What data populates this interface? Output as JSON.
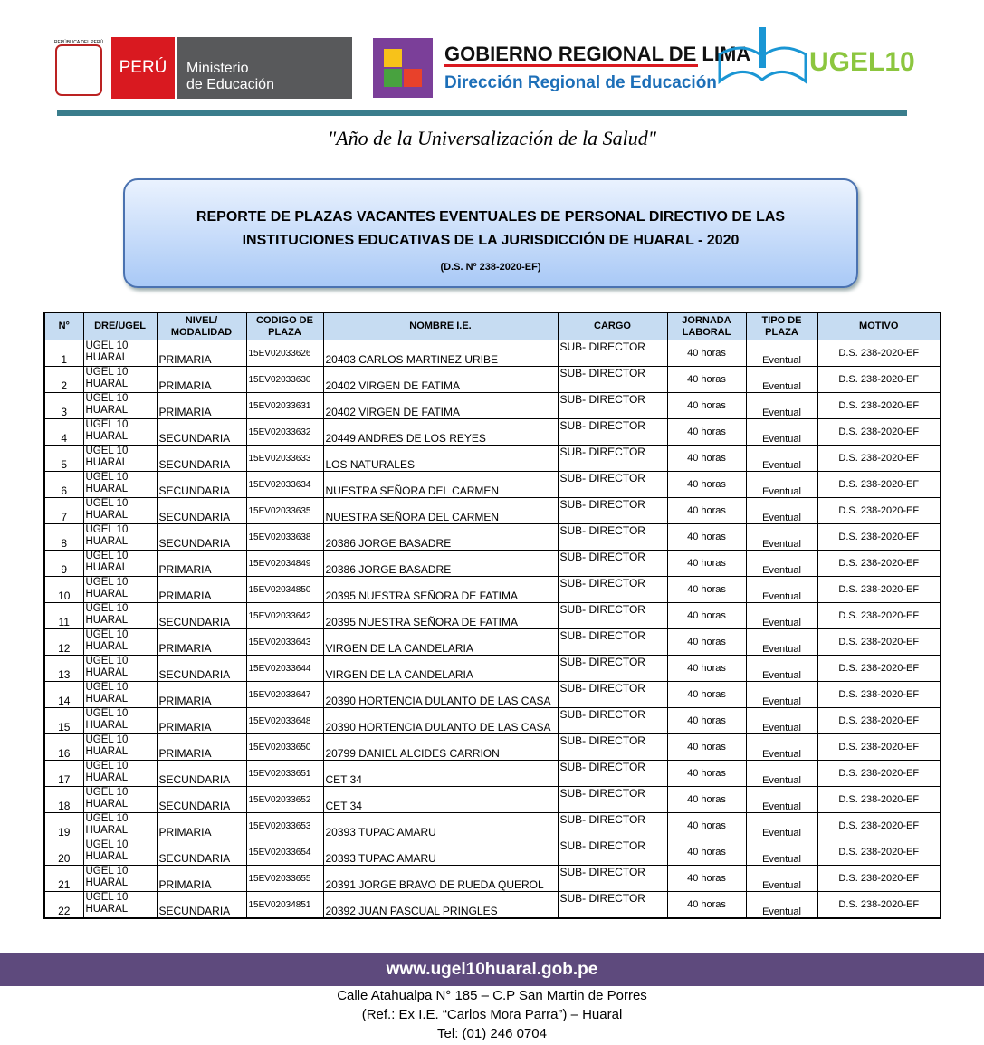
{
  "header": {
    "peru_shield": "REPÚBLICA DEL PERÚ",
    "peru": "PERÚ",
    "ministerio": [
      "Ministerio",
      "de Educación"
    ],
    "gobierno": "GOBIERNO REGIONAL DE LIMA",
    "direccion": "Dirección Regional de Educación",
    "ugel": "UGEL10"
  },
  "motto": "\"Año de la Universalización de la Salud\"",
  "title": {
    "lines": [
      "REPORTE DE PLAZAS VACANTES EVENTUALES DE PERSONAL DIRECTIVO DE LAS",
      "INSTITUCIONES EDUCATIVAS DE LA JURISDICCIÓN DE HUARAL - 2020"
    ],
    "decree": "(D.S. Nº 238-2020-EF)"
  },
  "table": {
    "columns": [
      "N°",
      "DRE/UGEL",
      "NIVEL/ MODALIDAD",
      "CODIGO DE PLAZA",
      "NOMBRE I.E.",
      "CARGO",
      "JORNADA LABORAL",
      "TIPO DE PLAZA",
      "MOTIVO"
    ],
    "rows": [
      [
        1,
        "UGEL 10",
        "HUARAL",
        "PRIMARIA",
        "15EV02033626",
        "20403 CARLOS MARTINEZ URIBE",
        "SUB- DIRECTOR",
        "40 horas",
        "Eventual",
        "D.S. 238-2020-EF"
      ],
      [
        2,
        "UGEL 10",
        "HUARAL",
        "PRIMARIA",
        "15EV02033630",
        "20402 VIRGEN DE FATIMA",
        "SUB- DIRECTOR",
        "40 horas",
        "Eventual",
        "D.S. 238-2020-EF"
      ],
      [
        3,
        "UGEL 10",
        "HUARAL",
        "PRIMARIA",
        "15EV02033631",
        "20402 VIRGEN DE FATIMA",
        "SUB- DIRECTOR",
        "40 horas",
        "Eventual",
        "D.S. 238-2020-EF"
      ],
      [
        4,
        "UGEL 10",
        "HUARAL",
        "SECUNDARIA",
        "15EV02033632",
        "20449 ANDRES DE LOS REYES",
        "SUB- DIRECTOR",
        "40 horas",
        "Eventual",
        "D.S. 238-2020-EF"
      ],
      [
        5,
        "UGEL 10",
        "HUARAL",
        "SECUNDARIA",
        "15EV02033633",
        "LOS NATURALES",
        "SUB- DIRECTOR",
        "40 horas",
        "Eventual",
        "D.S. 238-2020-EF"
      ],
      [
        6,
        "UGEL 10",
        "HUARAL",
        "SECUNDARIA",
        "15EV02033634",
        "NUESTRA SEÑORA DEL CARMEN",
        "SUB- DIRECTOR",
        "40 horas",
        "Eventual",
        "D.S. 238-2020-EF"
      ],
      [
        7,
        "UGEL 10",
        "HUARAL",
        "SECUNDARIA",
        "15EV02033635",
        "NUESTRA SEÑORA DEL CARMEN",
        "SUB- DIRECTOR",
        "40 horas",
        "Eventual",
        "D.S. 238-2020-EF"
      ],
      [
        8,
        "UGEL 10",
        "HUARAL",
        "SECUNDARIA",
        "15EV02033638",
        "20386 JORGE BASADRE",
        "SUB- DIRECTOR",
        "40 horas",
        "Eventual",
        "D.S. 238-2020-EF"
      ],
      [
        9,
        "UGEL 10",
        "HUARAL",
        "PRIMARIA",
        "15EV02034849",
        "20386 JORGE BASADRE",
        "SUB- DIRECTOR",
        "40 horas",
        "Eventual",
        "D.S. 238-2020-EF"
      ],
      [
        10,
        "UGEL 10",
        "HUARAL",
        "PRIMARIA",
        "15EV02034850",
        "20395 NUESTRA SEÑORA DE FATIMA",
        "SUB- DIRECTOR",
        "40 horas",
        "Eventual",
        "D.S. 238-2020-EF"
      ],
      [
        11,
        "UGEL 10",
        "HUARAL",
        "SECUNDARIA",
        "15EV02033642",
        "20395 NUESTRA SEÑORA DE FATIMA",
        "SUB- DIRECTOR",
        "40 horas",
        "Eventual",
        "D.S. 238-2020-EF"
      ],
      [
        12,
        "UGEL 10",
        "HUARAL",
        "PRIMARIA",
        "15EV02033643",
        "VIRGEN DE LA CANDELARIA",
        "SUB- DIRECTOR",
        "40 horas",
        "Eventual",
        "D.S. 238-2020-EF"
      ],
      [
        13,
        "UGEL 10",
        "HUARAL",
        "SECUNDARIA",
        "15EV02033644",
        "VIRGEN DE LA CANDELARIA",
        "SUB- DIRECTOR",
        "40 horas",
        "Eventual",
        "D.S. 238-2020-EF"
      ],
      [
        14,
        "UGEL 10",
        "HUARAL",
        "PRIMARIA",
        "15EV02033647",
        "20390 HORTENCIA DULANTO DE LAS CASA",
        "SUB- DIRECTOR",
        "40 horas",
        "Eventual",
        "D.S. 238-2020-EF"
      ],
      [
        15,
        "UGEL 10",
        "HUARAL",
        "PRIMARIA",
        "15EV02033648",
        "20390 HORTENCIA DULANTO DE LAS CASA",
        "SUB- DIRECTOR",
        "40 horas",
        "Eventual",
        "D.S. 238-2020-EF"
      ],
      [
        16,
        "UGEL 10",
        "HUARAL",
        "PRIMARIA",
        "15EV02033650",
        "20799 DANIEL ALCIDES CARRION",
        "SUB- DIRECTOR",
        "40 horas",
        "Eventual",
        "D.S. 238-2020-EF"
      ],
      [
        17,
        "UGEL 10",
        "HUARAL",
        "SECUNDARIA",
        "15EV02033651",
        "CET 34",
        "SUB- DIRECTOR",
        "40 horas",
        "Eventual",
        "D.S. 238-2020-EF"
      ],
      [
        18,
        "UGEL 10",
        "HUARAL",
        "SECUNDARIA",
        "15EV02033652",
        "CET 34",
        "SUB- DIRECTOR",
        "40 horas",
        "Eventual",
        "D.S. 238-2020-EF"
      ],
      [
        19,
        "UGEL 10",
        "HUARAL",
        "PRIMARIA",
        "15EV02033653",
        "20393 TUPAC AMARU",
        "SUB- DIRECTOR",
        "40 horas",
        "Eventual",
        "D.S. 238-2020-EF"
      ],
      [
        20,
        "UGEL 10",
        "HUARAL",
        "SECUNDARIA",
        "15EV02033654",
        "20393 TUPAC AMARU",
        "SUB- DIRECTOR",
        "40 horas",
        "Eventual",
        "D.S. 238-2020-EF"
      ],
      [
        21,
        "UGEL 10",
        "HUARAL",
        "PRIMARIA",
        "15EV02033655",
        "20391 JORGE BRAVO DE RUEDA QUEROL",
        "SUB- DIRECTOR",
        "40 horas",
        "Eventual",
        "D.S. 238-2020-EF"
      ],
      [
        22,
        "UGEL 10",
        "HUARAL",
        "SECUNDARIA",
        "15EV02034851",
        "20392 JUAN PASCUAL PRINGLES",
        "SUB- DIRECTOR",
        "40 horas",
        "Eventual",
        "D.S. 238-2020-EF"
      ]
    ]
  },
  "footer": {
    "url": "www.ugel10huaral.gob.pe",
    "address": [
      "Calle Atahualpa N° 185 – C.P San Martin de Porres",
      "(Ref.: Ex I.E. “Carlos Mora Parra”) – Huaral",
      "Tel: (01) 246 0704"
    ]
  }
}
